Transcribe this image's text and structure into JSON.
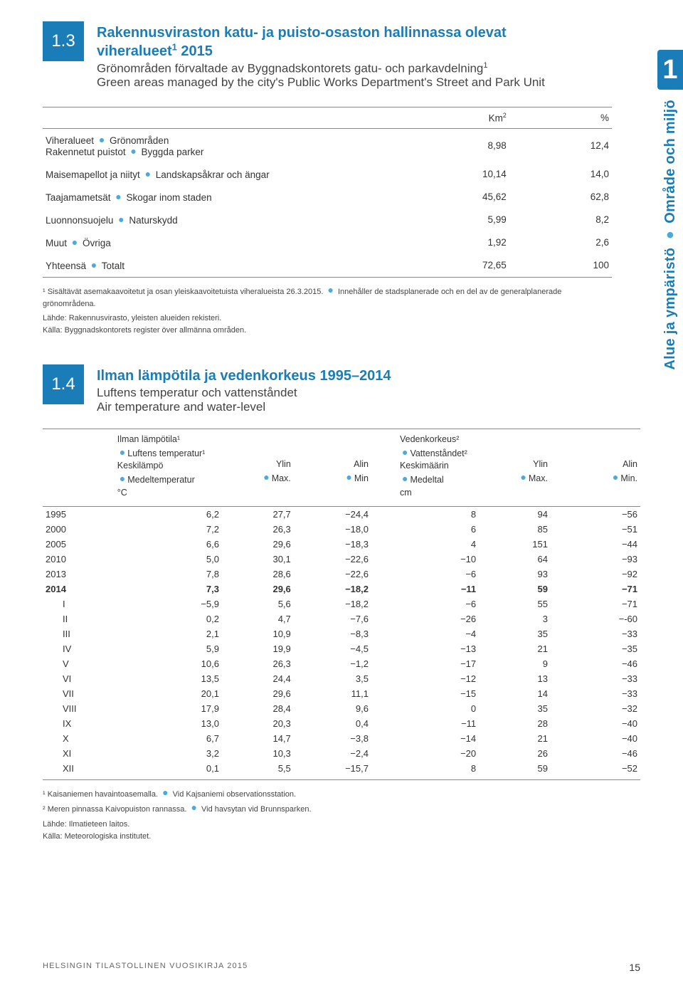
{
  "page_tab": "1",
  "vertical_fi": "Alue ja ympäristö",
  "vertical_sv": "Område och miljö",
  "sec13": {
    "num": "1.3",
    "title_fi_l1": "Rakennusviraston katu- ja puisto-osaston hallinnassa olevat",
    "title_fi_l2": "viheralueet¹ 2015",
    "title_sv": "Grönområden förvaltade av Byggnadskontorets gatu- och parkavdelning¹",
    "title_en": "Green areas managed by the city's Public Works Department's Street and Park Unit",
    "col_km": "Km²",
    "col_pct": "%",
    "rows": [
      {
        "label_fi": "Viheralueet",
        "label_sv": "Grönområden",
        "sub_fi": "Rakennetut puistot",
        "sub_sv": "Byggda parker",
        "km": "8,98",
        "pct": "12,4"
      },
      {
        "label_fi": "Maisemapellot ja niityt",
        "label_sv": "Landskapsåkrar och ängar",
        "km": "10,14",
        "pct": "14,0"
      },
      {
        "label_fi": "Taajamametsät",
        "label_sv": "Skogar inom staden",
        "km": "45,62",
        "pct": "62,8"
      },
      {
        "label_fi": "Luonnonsuojelu",
        "label_sv": "Naturskydd",
        "km": "5,99",
        "pct": "8,2"
      },
      {
        "label_fi": "Muut",
        "label_sv": "Övriga",
        "km": "1,92",
        "pct": "2,6"
      },
      {
        "label_fi": "Yhteensä",
        "label_sv": "Totalt",
        "km": "72,65",
        "pct": "100"
      }
    ],
    "fn1_a": "¹ Sisältävät asemakaavoitetut ja osan yleiskaavoitetuista viheralueista 26.3.2015.",
    "fn1_b": "Innehåller de stadsplanerade och en del av de generalplanerade grönområdena.",
    "src_fi": "Lähde: Rakennusvirasto, yleisten alueiden rekisteri.",
    "src_sv": "Källa: Byggnadskontorets register över allmänna områden."
  },
  "sec14": {
    "num": "1.4",
    "title_fi": "Ilman lämpötila ja vedenkorkeus 1995–2014",
    "title_sv": "Luftens temperatur och vattenståndet",
    "title_en": "Air temperature and water-level",
    "h_temp_fi": "Ilman lämpötila¹",
    "h_temp_sv": "Luftens temperatur¹",
    "h_avg_fi": "Keskilämpö",
    "h_avg_sv": "Medeltemperatur",
    "h_unit_c": "°C",
    "h_max_fi": "Ylin",
    "h_max_sv": "Max.",
    "h_min_fi": "Alin",
    "h_min_sv": "Min",
    "h_water_fi": "Vedenkorkeus²",
    "h_water_sv": "Vattenståndet²",
    "h_wavg_fi": "Keskimäärin",
    "h_wavg_sv": "Medeltal",
    "h_unit_cm": "cm",
    "h_wmax_fi": "Ylin",
    "h_wmax_sv": "Max.",
    "h_wmin_fi": "Alin",
    "h_wmin_sv": "Min.",
    "rows": [
      {
        "y": "1995",
        "tavg": "6,2",
        "tmax": "27,7",
        "tmin": "−24,4",
        "wavg": "8",
        "wmax": "94",
        "wmin": "−56"
      },
      {
        "y": "2000",
        "tavg": "7,2",
        "tmax": "26,3",
        "tmin": "−18,0",
        "wavg": "6",
        "wmax": "85",
        "wmin": "−51"
      },
      {
        "y": "2005",
        "tavg": "6,6",
        "tmax": "29,6",
        "tmin": "−18,3",
        "wavg": "4",
        "wmax": "151",
        "wmin": "−44"
      },
      {
        "y": "2010",
        "tavg": "5,0",
        "tmax": "30,1",
        "tmin": "−22,6",
        "wavg": "−10",
        "wmax": "64",
        "wmin": "−93"
      },
      {
        "y": "2013",
        "tavg": "7,8",
        "tmax": "28,6",
        "tmin": "−22,6",
        "wavg": "−6",
        "wmax": "93",
        "wmin": "−92"
      },
      {
        "y": "2014",
        "tavg": "7,3",
        "tmax": "29,6",
        "tmin": "−18,2",
        "wavg": "−11",
        "wmax": "59",
        "wmin": "−71",
        "bold": true
      },
      {
        "y": "I",
        "tavg": "−5,9",
        "tmax": "5,6",
        "tmin": "−18,2",
        "wavg": "−6",
        "wmax": "55",
        "wmin": "−71",
        "indent": true
      },
      {
        "y": "II",
        "tavg": "0,2",
        "tmax": "4,7",
        "tmin": "−7,6",
        "wavg": "−26",
        "wmax": "3",
        "wmin": "−-60",
        "indent": true
      },
      {
        "y": "III",
        "tavg": "2,1",
        "tmax": "10,9",
        "tmin": "−8,3",
        "wavg": "−4",
        "wmax": "35",
        "wmin": "−33",
        "indent": true
      },
      {
        "y": "IV",
        "tavg": "5,9",
        "tmax": "19,9",
        "tmin": "−4,5",
        "wavg": "−13",
        "wmax": "21",
        "wmin": "−35",
        "indent": true
      },
      {
        "y": "V",
        "tavg": "10,6",
        "tmax": "26,3",
        "tmin": "−1,2",
        "wavg": "−17",
        "wmax": "9",
        "wmin": "−46",
        "indent": true
      },
      {
        "y": "VI",
        "tavg": "13,5",
        "tmax": "24,4",
        "tmin": "3,5",
        "wavg": "−12",
        "wmax": "13",
        "wmin": "−33",
        "indent": true
      },
      {
        "y": "VII",
        "tavg": "20,1",
        "tmax": "29,6",
        "tmin": "11,1",
        "wavg": "−15",
        "wmax": "14",
        "wmin": "−33",
        "indent": true
      },
      {
        "y": "VIII",
        "tavg": "17,9",
        "tmax": "28,4",
        "tmin": "9,6",
        "wavg": "0",
        "wmax": "35",
        "wmin": "−32",
        "indent": true
      },
      {
        "y": "IX",
        "tavg": "13,0",
        "tmax": "20,3",
        "tmin": "0,4",
        "wavg": "−11",
        "wmax": "28",
        "wmin": "−40",
        "indent": true
      },
      {
        "y": "X",
        "tavg": "6,7",
        "tmax": "14,7",
        "tmin": "−3,8",
        "wavg": "−14",
        "wmax": "21",
        "wmin": "−40",
        "indent": true
      },
      {
        "y": "XI",
        "tavg": "3,2",
        "tmax": "10,3",
        "tmin": "−2,4",
        "wavg": "−20",
        "wmax": "26",
        "wmin": "−46",
        "indent": true
      },
      {
        "y": "XII",
        "tavg": "0,1",
        "tmax": "5,5",
        "tmin": "−15,7",
        "wavg": "8",
        "wmax": "59",
        "wmin": "−52",
        "indent": true
      }
    ],
    "fn1_a": "¹ Kaisaniemen havaintoasemalla.",
    "fn1_b": "Vid Kajsaniemi observationsstation.",
    "fn2_a": "² Meren pinnassa Kaivopuiston rannassa.",
    "fn2_b": "Vid havsytan vid Brunnsparken.",
    "src_fi": "Lähde: Ilmatieteen laitos.",
    "src_sv": "Källa: Meteorologiska institutet."
  },
  "footer_text": "HELSINGIN TILASTOLLINEN VUOSIKIRJA 2015",
  "page_number": "15"
}
